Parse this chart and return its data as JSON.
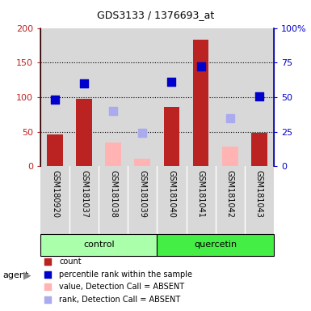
{
  "title": "GDS3133 / 1376693_at",
  "samples": [
    "GSM180920",
    "GSM181037",
    "GSM181038",
    "GSM181039",
    "GSM181040",
    "GSM181041",
    "GSM181042",
    "GSM181043"
  ],
  "count_values": [
    46,
    98,
    null,
    null,
    86,
    183,
    null,
    49
  ],
  "rank_values": [
    97,
    120,
    null,
    null,
    122,
    145,
    null,
    101
  ],
  "absent_value": [
    null,
    null,
    35,
    11,
    null,
    null,
    29,
    null
  ],
  "absent_rank": [
    null,
    null,
    80,
    48,
    null,
    null,
    69,
    null
  ],
  "ylim": [
    0,
    200
  ],
  "yticks_left": [
    0,
    50,
    100,
    150,
    200
  ],
  "yticks_right": [
    0,
    50,
    100,
    150,
    200
  ],
  "ytick_left_labels": [
    "0",
    "50",
    "100",
    "150",
    "200"
  ],
  "ytick_right_labels": [
    "0",
    "25",
    "50",
    "75",
    "100%"
  ],
  "bar_color_count": "#bb2222",
  "bar_color_absent_value": "#ffb3b3",
  "dot_color_rank": "#0000cc",
  "dot_color_absent_rank": "#aaaaee",
  "col_bg_color": "#d8d8d8",
  "group_color_control": "#aaffaa",
  "group_color_quercetin": "#44ee44",
  "bar_width": 0.55,
  "dot_size": 45,
  "group_spans": {
    "control": [
      0,
      3
    ],
    "quercetin": [
      4,
      7
    ]
  },
  "legend_items": [
    {
      "color": "#bb2222",
      "label": "count"
    },
    {
      "color": "#0000cc",
      "label": "percentile rank within the sample"
    },
    {
      "color": "#ffb3b3",
      "label": "value, Detection Call = ABSENT"
    },
    {
      "color": "#aaaaee",
      "label": "rank, Detection Call = ABSENT"
    }
  ]
}
